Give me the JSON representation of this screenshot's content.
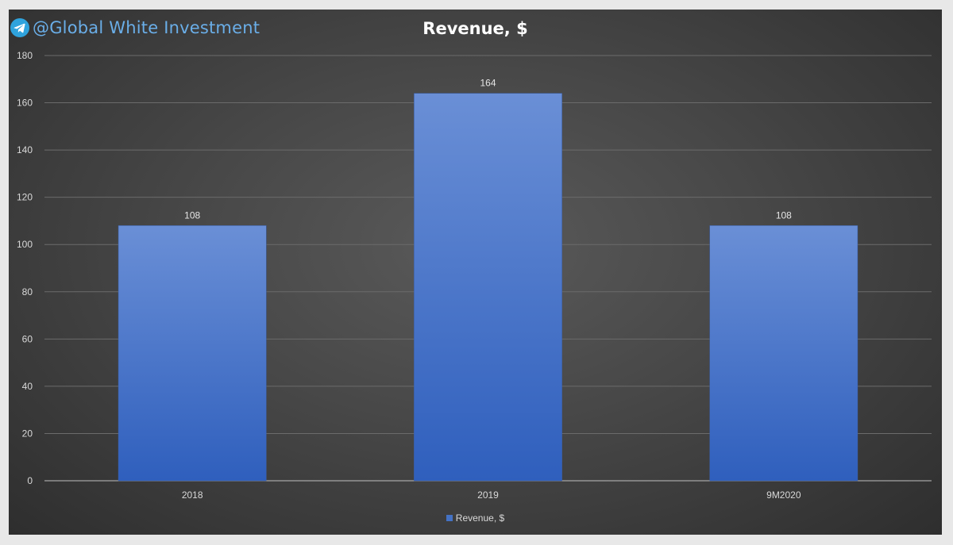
{
  "watermark": {
    "text": "@Global White Investment",
    "icon": "telegram-icon",
    "color": "#6aaee8"
  },
  "chart_data": {
    "type": "bar",
    "title": "Revenue, $",
    "categories": [
      "2018",
      "2019",
      "9M2020"
    ],
    "series": [
      {
        "name": "Revenue, $",
        "values": [
          108,
          164,
          108
        ],
        "color": "#4472c4"
      }
    ],
    "data_labels": [
      "108",
      "164",
      "108"
    ],
    "y_ticks": [
      "0",
      "20",
      "40",
      "60",
      "80",
      "100",
      "120",
      "140",
      "160",
      "180"
    ],
    "ylim": [
      0,
      180
    ],
    "grid": true,
    "legend": "bottom"
  }
}
